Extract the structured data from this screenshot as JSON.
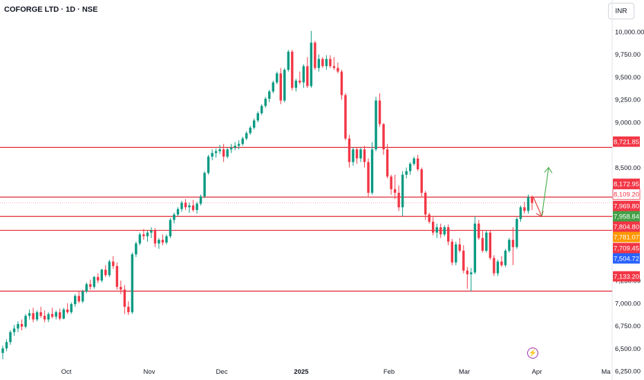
{
  "header": {
    "title": "COFORGE LTD · 1D · NSE",
    "currency": "INR"
  },
  "colors": {
    "up": "#089981",
    "down": "#f23645",
    "level": "#e0242f",
    "arrow_up": "#4caf50",
    "arrow_down": "#e53935"
  },
  "chart_data": {
    "type": "candlestick",
    "ylim": [
      6250,
      10000
    ],
    "y_ticks": [
      {
        "v": 10000,
        "label": "10,000.00"
      },
      {
        "v": 9750,
        "label": "9,750.00"
      },
      {
        "v": 9500,
        "label": "9,500.00"
      },
      {
        "v": 9250,
        "label": "9,250.00"
      },
      {
        "v": 9000,
        "label": "9,000.00"
      },
      {
        "v": 8500,
        "label": "8,500.00"
      },
      {
        "v": 7250,
        "label": "7,250.00"
      },
      {
        "v": 7000,
        "label": "7,000.00"
      },
      {
        "v": 6750,
        "label": "6,750.00"
      },
      {
        "v": 6500,
        "label": "6,500.00"
      },
      {
        "v": 6250,
        "label": "6,250.00"
      }
    ],
    "x_labels": [
      {
        "label": "Oct",
        "x": 0,
        "bold": false
      },
      {
        "label": "Nov",
        "x": 0,
        "bold": false
      },
      {
        "label": "Dec",
        "x": 0,
        "bold": false
      },
      {
        "label": "2025",
        "x": 0,
        "bold": true
      },
      {
        "label": "Feb",
        "x": 0,
        "bold": false
      },
      {
        "label": "Mar",
        "x": 0,
        "bold": false
      },
      {
        "label": "Apr",
        "x": 0,
        "bold": false
      },
      {
        "label": "Ma",
        "x": 0,
        "bold": false
      }
    ],
    "horizontal_levels": [
      8721.85,
      8172.95,
      7958.84,
      7804.8,
      7133.2
    ],
    "price_tags": [
      {
        "label": "8,721.85",
        "value": 8721.85,
        "bg": "#f23645",
        "fg": "#ffffff"
      },
      {
        "label": "8,172.95",
        "value": 8172.95,
        "bg": "#f23645",
        "fg": "#ffffff"
      },
      {
        "label": "8,109.20",
        "value": 8109.2,
        "bg": "#ffffff",
        "fg": "#f23645"
      },
      {
        "label": "7,969.80",
        "value": 7969.8,
        "bg": "#f23645",
        "fg": "#ffffff"
      },
      {
        "label": "7,958.84",
        "value": 7958.84,
        "bg": "#43a047",
        "fg": "#ffffff"
      },
      {
        "label": "7,804.80",
        "value": 7804.8,
        "bg": "#f23645",
        "fg": "#ffffff"
      },
      {
        "label": "7,781.07",
        "value": 7781.07,
        "bg": "#ff9800",
        "fg": "#ffffff"
      },
      {
        "label": "7,709.45",
        "value": 7709.45,
        "bg": "#f23645",
        "fg": "#ffffff"
      },
      {
        "label": "7,504.72",
        "value": 7504.72,
        "bg": "#2962ff",
        "fg": "#ffffff"
      },
      {
        "label": "7,133.20",
        "value": 7133.2,
        "bg": "#f23645",
        "fg": "#ffffff"
      }
    ],
    "candles": [
      [
        6450,
        6530,
        6380,
        6500
      ],
      [
        6500,
        6600,
        6470,
        6570
      ],
      [
        6570,
        6700,
        6540,
        6680
      ],
      [
        6680,
        6760,
        6640,
        6720
      ],
      [
        6720,
        6800,
        6680,
        6770
      ],
      [
        6770,
        6820,
        6700,
        6740
      ],
      [
        6740,
        6880,
        6720,
        6860
      ],
      [
        6860,
        6930,
        6820,
        6890
      ],
      [
        6890,
        6950,
        6790,
        6820
      ],
      [
        6820,
        6920,
        6800,
        6900
      ],
      [
        6900,
        6960,
        6840,
        6860
      ],
      [
        6860,
        6920,
        6790,
        6820
      ],
      [
        6820,
        6900,
        6790,
        6880
      ],
      [
        6880,
        6950,
        6830,
        6850
      ],
      [
        6850,
        6920,
        6820,
        6900
      ],
      [
        6900,
        6940,
        6810,
        6830
      ],
      [
        6830,
        6950,
        6820,
        6930
      ],
      [
        6930,
        7000,
        6880,
        6900
      ],
      [
        6900,
        7010,
        6880,
        6990
      ],
      [
        6990,
        7100,
        6960,
        7080
      ],
      [
        7080,
        7130,
        7000,
        7020
      ],
      [
        7020,
        7150,
        7000,
        7130
      ],
      [
        7130,
        7230,
        7110,
        7210
      ],
      [
        7210,
        7260,
        7150,
        7180
      ],
      [
        7180,
        7300,
        7160,
        7290
      ],
      [
        7290,
        7330,
        7220,
        7250
      ],
      [
        7250,
        7380,
        7230,
        7370
      ],
      [
        7370,
        7420,
        7290,
        7310
      ],
      [
        7310,
        7480,
        7290,
        7460
      ],
      [
        7460,
        7520,
        7380,
        7410
      ],
      [
        7410,
        7450,
        7150,
        7180
      ],
      [
        7180,
        7250,
        7100,
        7150
      ],
      [
        7150,
        7200,
        6880,
        6960
      ],
      [
        6960,
        7020,
        6870,
        6900
      ],
      [
        6900,
        7560,
        6880,
        7540
      ],
      [
        7540,
        7680,
        7510,
        7660
      ],
      [
        7660,
        7780,
        7640,
        7760
      ],
      [
        7760,
        7820,
        7700,
        7740
      ],
      [
        7740,
        7800,
        7680,
        7780
      ],
      [
        7780,
        7840,
        7720,
        7800
      ],
      [
        7800,
        7830,
        7620,
        7660
      ],
      [
        7660,
        7720,
        7600,
        7700
      ],
      [
        7700,
        7760,
        7640,
        7670
      ],
      [
        7670,
        7760,
        7650,
        7740
      ],
      [
        7740,
        7940,
        7720,
        7920
      ],
      [
        7920,
        8000,
        7880,
        7980
      ],
      [
        7980,
        8060,
        7960,
        8040
      ],
      [
        8040,
        8130,
        8010,
        8110
      ],
      [
        8110,
        8150,
        8030,
        8060
      ],
      [
        8060,
        8110,
        8000,
        8080
      ],
      [
        8080,
        8140,
        8010,
        8030
      ],
      [
        8030,
        8120,
        7990,
        8100
      ],
      [
        8100,
        8200,
        8080,
        8180
      ],
      [
        8180,
        8460,
        8160,
        8440
      ],
      [
        8440,
        8640,
        8420,
        8620
      ],
      [
        8620,
        8700,
        8580,
        8660
      ],
      [
        8660,
        8710,
        8610,
        8680
      ],
      [
        8680,
        8750,
        8650,
        8700
      ],
      [
        8700,
        8760,
        8560,
        8620
      ],
      [
        8620,
        8720,
        8600,
        8700
      ],
      [
        8700,
        8760,
        8660,
        8720
      ],
      [
        8720,
        8780,
        8690,
        8740
      ],
      [
        8740,
        8800,
        8700,
        8760
      ],
      [
        8760,
        8840,
        8740,
        8820
      ],
      [
        8820,
        8900,
        8800,
        8880
      ],
      [
        8880,
        8960,
        8860,
        8940
      ],
      [
        8940,
        9040,
        8920,
        9020
      ],
      [
        9020,
        9120,
        9000,
        9100
      ],
      [
        9100,
        9200,
        9080,
        9180
      ],
      [
        9180,
        9280,
        9160,
        9260
      ],
      [
        9260,
        9360,
        9220,
        9340
      ],
      [
        9340,
        9460,
        9320,
        9440
      ],
      [
        9440,
        9560,
        9420,
        9540
      ],
      [
        9540,
        9600,
        9200,
        9240
      ],
      [
        9240,
        9600,
        9220,
        9580
      ],
      [
        9580,
        9800,
        9560,
        9780
      ],
      [
        9780,
        9800,
        9350,
        9380
      ],
      [
        9380,
        9480,
        9340,
        9460
      ],
      [
        9460,
        9560,
        9420,
        9440
      ],
      [
        9440,
        9640,
        9380,
        9620
      ],
      [
        9620,
        9720,
        9380,
        9400
      ],
      [
        9400,
        10010,
        9380,
        9880
      ],
      [
        9880,
        9900,
        9580,
        9600
      ],
      [
        9600,
        9750,
        9560,
        9700
      ],
      [
        9700,
        9720,
        9600,
        9620
      ],
      [
        9620,
        9740,
        9580,
        9700
      ],
      [
        9700,
        9740,
        9600,
        9620
      ],
      [
        9620,
        9720,
        9580,
        9600
      ],
      [
        9600,
        9660,
        9540,
        9560
      ],
      [
        9560,
        9580,
        9250,
        9300
      ],
      [
        9300,
        9320,
        8800,
        8820
      ],
      [
        8820,
        8860,
        8500,
        8560
      ],
      [
        8560,
        8720,
        8520,
        8700
      ],
      [
        8700,
        8720,
        8540,
        8600
      ],
      [
        8600,
        8720,
        8560,
        8700
      ],
      [
        8700,
        8740,
        8500,
        8560
      ],
      [
        8560,
        8600,
        8180,
        8220
      ],
      [
        8220,
        8780,
        8200,
        8700
      ],
      [
        8700,
        9280,
        8680,
        9240
      ],
      [
        9240,
        9320,
        8950,
        8980
      ],
      [
        8980,
        8990,
        8640,
        8700
      ],
      [
        8700,
        8760,
        8380,
        8400
      ],
      [
        8400,
        8420,
        8200,
        8260
      ],
      [
        8260,
        8420,
        8150,
        8220
      ],
      [
        8220,
        8300,
        8020,
        8060
      ],
      [
        8060,
        8460,
        7960,
        8420
      ],
      [
        8420,
        8500,
        8380,
        8460
      ],
      [
        8460,
        8560,
        8420,
        8540
      ],
      [
        8540,
        8620,
        8520,
        8600
      ],
      [
        8600,
        8640,
        8460,
        8480
      ],
      [
        8480,
        8500,
        8180,
        8220
      ],
      [
        8220,
        8240,
        7920,
        7980
      ],
      [
        7980,
        8000,
        7880,
        7900
      ],
      [
        7900,
        7950,
        7750,
        7780
      ],
      [
        7780,
        7880,
        7720,
        7840
      ],
      [
        7840,
        7880,
        7720,
        7760
      ],
      [
        7760,
        7860,
        7740,
        7840
      ],
      [
        7840,
        7870,
        7640,
        7680
      ],
      [
        7680,
        7710,
        7420,
        7450
      ],
      [
        7450,
        7680,
        7420,
        7650
      ],
      [
        7650,
        7720,
        7560,
        7580
      ],
      [
        7580,
        7640,
        7330,
        7360
      ],
      [
        7360,
        7400,
        7160,
        7320
      ],
      [
        7320,
        7390,
        7130,
        7340
      ],
      [
        7340,
        7960,
        7320,
        7880
      ],
      [
        7880,
        7920,
        7700,
        7720
      ],
      [
        7720,
        7800,
        7560,
        7580
      ],
      [
        7580,
        7800,
        7560,
        7780
      ],
      [
        7780,
        7810,
        7480,
        7500
      ],
      [
        7500,
        7530,
        7300,
        7330
      ],
      [
        7330,
        7480,
        7300,
        7460
      ],
      [
        7460,
        7520,
        7400,
        7420
      ],
      [
        7420,
        7600,
        7400,
        7580
      ],
      [
        7580,
        7720,
        7560,
        7700
      ],
      [
        7700,
        7840,
        7420,
        7620
      ],
      [
        7620,
        7950,
        7600,
        7930
      ],
      [
        7930,
        8080,
        7900,
        8060
      ],
      [
        8060,
        8120,
        7990,
        8020
      ],
      [
        8020,
        8200,
        7990,
        8170
      ],
      [
        8170,
        8190,
        8030,
        8109.2
      ]
    ],
    "series": [
      {
        "name": "COFORGE LTD",
        "type": "candlestick"
      }
    ],
    "projection": {
      "up_target": 8500,
      "down_target": 7960
    }
  }
}
